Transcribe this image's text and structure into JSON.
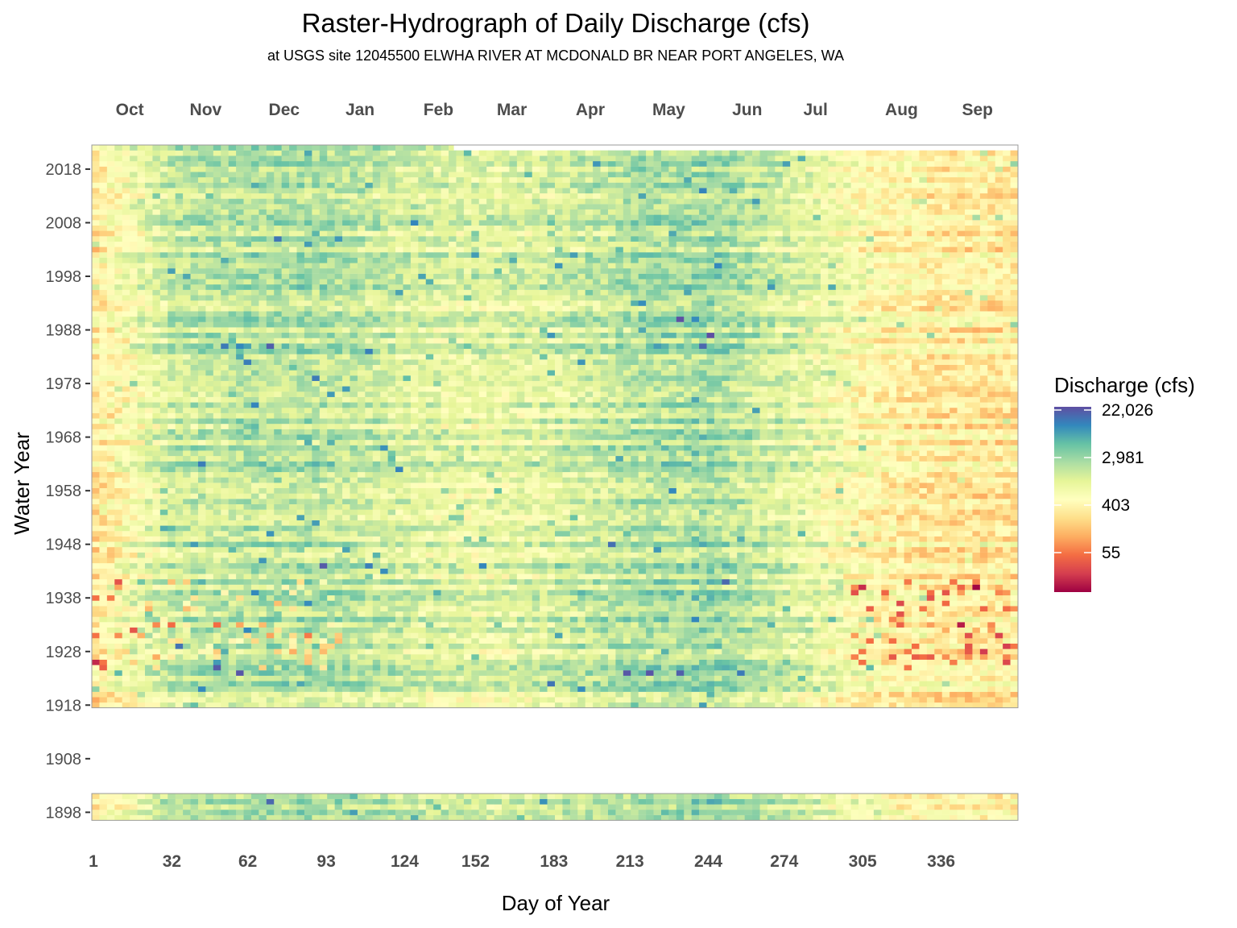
{
  "title": "Raster-Hydrograph of Daily Discharge (cfs)",
  "subtitle": "at USGS site 12045500 ELWHA RIVER AT MCDONALD BR NEAR PORT ANGELES, WA",
  "chart_data": {
    "type": "heatmap",
    "xlabel": "Day of Year",
    "ylabel": "Water Year",
    "x_ticks": [
      1,
      32,
      62,
      93,
      124,
      152,
      183,
      213,
      244,
      274,
      305,
      336
    ],
    "xlim": [
      1,
      366
    ],
    "month_labels": [
      {
        "label": "Oct",
        "day": 16
      },
      {
        "label": "Nov",
        "day": 46
      },
      {
        "label": "Dec",
        "day": 77
      },
      {
        "label": "Jan",
        "day": 107
      },
      {
        "label": "Feb",
        "day": 138
      },
      {
        "label": "Mar",
        "day": 167
      },
      {
        "label": "Apr",
        "day": 198
      },
      {
        "label": "May",
        "day": 229
      },
      {
        "label": "Jun",
        "day": 260
      },
      {
        "label": "Jul",
        "day": 287
      },
      {
        "label": "Aug",
        "day": 321
      },
      {
        "label": "Sep",
        "day": 351
      }
    ],
    "y_ticks": [
      1898,
      1908,
      1918,
      1928,
      1938,
      1948,
      1958,
      1968,
      1978,
      1988,
      1998,
      2008,
      2018
    ],
    "ylim": [
      1895.5,
      2022.5
    ],
    "year_blocks": [
      {
        "start_year": 1897,
        "end_year": 1901,
        "data_starts_day": 1,
        "partial_first_year_start_day": 93
      },
      {
        "start_year": 1918,
        "end_year": 2022,
        "data_starts_day": 1,
        "partial_last_year_end_day": 143
      }
    ],
    "missing_years": [
      1902,
      1903,
      1904,
      1905,
      1906,
      1907,
      1908,
      1909,
      1910,
      1911,
      1912,
      1913,
      1914,
      1915,
      1916,
      1917
    ],
    "legend": {
      "title": "Discharge (cfs)",
      "ticks": [
        "22,026",
        "2,981",
        "403",
        "55"
      ],
      "scale": "log",
      "palette": [
        "#9e0142",
        "#d53e4f",
        "#f46d43",
        "#fdae61",
        "#fee08b",
        "#ffffbf",
        "#e6f598",
        "#abdda4",
        "#66c2a5",
        "#3288bd",
        "#5e4fa2"
      ]
    },
    "colormap_note": "log10 discharge mapped to Spectral palette",
    "typical_seasonal_log_cfs": {
      "Oct": 2.5,
      "Nov": 3.2,
      "Dec": 3.3,
      "Jan": 3.3,
      "Feb": 3.1,
      "Mar": 3.0,
      "Apr": 3.1,
      "May": 3.3,
      "Jun": 3.4,
      "Jul": 3.1,
      "Aug": 2.7,
      "Sep": 2.5
    }
  }
}
